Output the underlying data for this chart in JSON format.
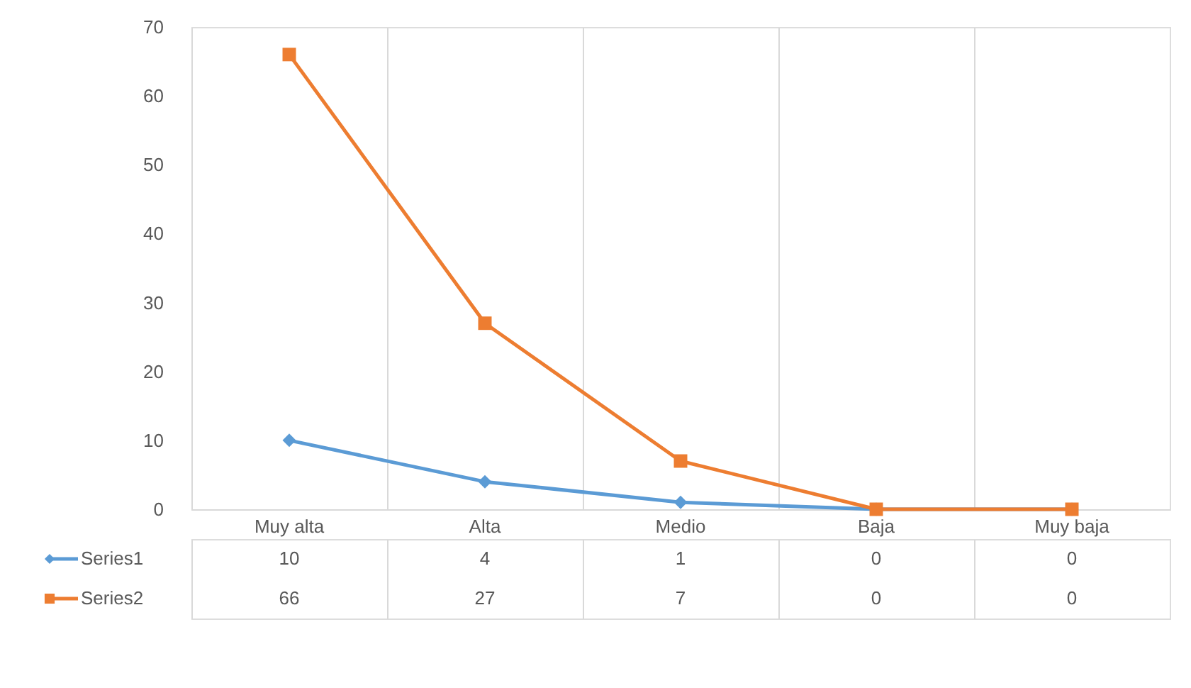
{
  "chart_data": {
    "type": "line",
    "categories": [
      "Muy alta",
      "Alta",
      "Medio",
      "Baja",
      "Muy baja"
    ],
    "series": [
      {
        "name": "Series1",
        "color": "#5b9bd5",
        "marker": "diamond",
        "values": [
          10,
          4,
          1,
          0,
          0
        ]
      },
      {
        "name": "Series2",
        "color": "#ed7d31",
        "marker": "square",
        "values": [
          66,
          27,
          7,
          0,
          0
        ]
      }
    ],
    "ylim": [
      0,
      70
    ],
    "yticks": [
      0,
      10,
      20,
      30,
      40,
      50,
      60,
      70
    ],
    "grid": "x",
    "legend": "bottom",
    "data_labels": true,
    "line_style": "solid"
  }
}
